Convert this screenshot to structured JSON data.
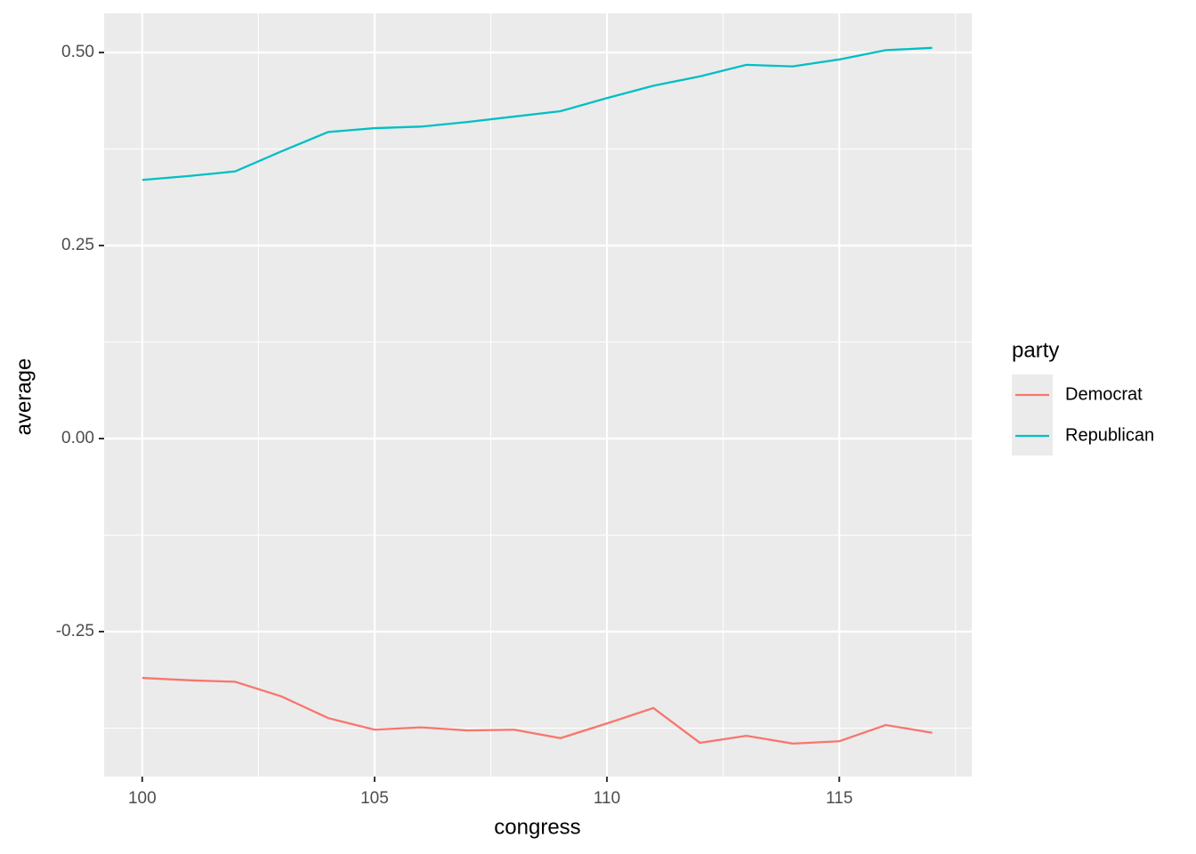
{
  "chart_data": {
    "type": "line",
    "x_label": "congress",
    "y_label": "average",
    "x": [
      100,
      101,
      102,
      103,
      104,
      105,
      106,
      107,
      108,
      109,
      110,
      111,
      112,
      113,
      114,
      115,
      116,
      117
    ],
    "series": [
      {
        "name": "Democrat",
        "color": "#F8766D",
        "values": [
          -0.31,
          -0.313,
          -0.315,
          -0.334,
          -0.362,
          -0.377,
          -0.374,
          -0.378,
          -0.377,
          -0.388,
          -0.369,
          -0.349,
          -0.394,
          -0.385,
          -0.395,
          -0.392,
          -0.371,
          -0.381
        ]
      },
      {
        "name": "Republican",
        "color": "#00BFC4",
        "values": [
          0.335,
          0.34,
          0.346,
          0.372,
          0.397,
          0.402,
          0.404,
          0.41,
          0.417,
          0.424,
          0.441,
          0.457,
          0.469,
          0.484,
          0.482,
          0.491,
          0.503,
          0.506
        ]
      }
    ],
    "xlim": [
      99.18,
      117.85
    ],
    "xticks": [
      100,
      105,
      110,
      115
    ],
    "ylim": [
      -0.4378,
      0.5507
    ],
    "yticks": [
      {
        "value": 0.5,
        "label": "0.50"
      },
      {
        "value": 0.25,
        "label": "0.25"
      },
      {
        "value": 0,
        "label": "0.00"
      },
      -0.25
    ],
    "grid": true,
    "legend_title": "party",
    "legend_position": "right"
  }
}
